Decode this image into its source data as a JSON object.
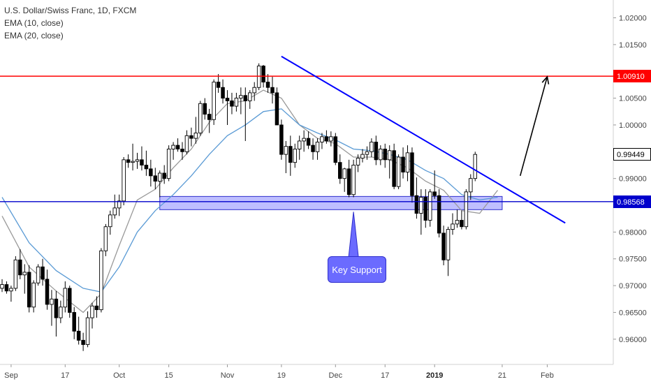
{
  "legend": {
    "title": "U.S. Dollar/Swiss Franc, 1D, FXCM",
    "ema10": "EMA (10, close)",
    "ema20": "EMA (20, close)"
  },
  "annotations": {
    "callout": "Key Support"
  },
  "price_tags": {
    "resistance": "1.00910",
    "last": "0.99449",
    "support": "0.98568"
  },
  "colors": {
    "resistance": "#ff0000",
    "support": "#0000cc",
    "trendline": "#0000ff",
    "zone": "#8a8aff",
    "ema10": "#999999",
    "ema20": "#5b9bd5",
    "candle_up": "#ffffff",
    "candle_down": "#000000",
    "last_tag_bg": "#ffffff"
  },
  "chart_data": {
    "type": "candlestick",
    "title": "U.S. Dollar/Swiss Franc, 1D, FXCM",
    "y_ticks": [
      "1.02000",
      "1.01500",
      "1.00910",
      "1.00500",
      "1.00000",
      "0.99449",
      "0.99000",
      "0.98568",
      "0.98000",
      "0.97500",
      "0.97000",
      "0.96500",
      "0.96000"
    ],
    "y_tick_values": [
      1.02,
      1.015,
      1.0091,
      1.005,
      1.0,
      0.99449,
      0.99,
      0.98568,
      0.98,
      0.975,
      0.97,
      0.965,
      0.96
    ],
    "ylim": [
      0.9575,
      1.0215
    ],
    "x_ticks": [
      {
        "label": "Sep",
        "index": 2
      },
      {
        "label": "17",
        "index": 14
      },
      {
        "label": "Oct",
        "index": 26
      },
      {
        "label": "15",
        "index": 37
      },
      {
        "label": "Nov",
        "index": 50
      },
      {
        "label": "19",
        "index": 62
      },
      {
        "label": "Dec",
        "index": 74
      },
      {
        "label": "17",
        "index": 85
      },
      {
        "label": "2019",
        "index": 96
      },
      {
        "label": "21",
        "index": 111
      },
      {
        "label": "Feb",
        "index": 121
      }
    ],
    "candles": [
      [
        0.9695,
        0.9712,
        0.9688,
        0.9702
      ],
      [
        0.9702,
        0.9708,
        0.9685,
        0.969
      ],
      [
        0.969,
        0.97,
        0.967,
        0.9695
      ],
      [
        0.9695,
        0.9755,
        0.969,
        0.9748
      ],
      [
        0.9748,
        0.9768,
        0.9712,
        0.972
      ],
      [
        0.972,
        0.974,
        0.9685,
        0.9725
      ],
      [
        0.9725,
        0.9738,
        0.965,
        0.966
      ],
      [
        0.966,
        0.971,
        0.965,
        0.9705
      ],
      [
        0.9705,
        0.974,
        0.97,
        0.9735
      ],
      [
        0.9735,
        0.975,
        0.97,
        0.9712
      ],
      [
        0.9712,
        0.973,
        0.9655,
        0.9665
      ],
      [
        0.9665,
        0.9692,
        0.9625,
        0.9675
      ],
      [
        0.9675,
        0.969,
        0.9605,
        0.964
      ],
      [
        0.964,
        0.9672,
        0.963,
        0.966
      ],
      [
        0.966,
        0.9708,
        0.965,
        0.9695
      ],
      [
        0.9695,
        0.97,
        0.964,
        0.965
      ],
      [
        0.965,
        0.966,
        0.96,
        0.9615
      ],
      [
        0.9615,
        0.9642,
        0.959,
        0.9598
      ],
      [
        0.9598,
        0.9612,
        0.9578,
        0.959
      ],
      [
        0.959,
        0.9652,
        0.9585,
        0.964
      ],
      [
        0.964,
        0.9668,
        0.962,
        0.9662
      ],
      [
        0.9662,
        0.968,
        0.964,
        0.9655
      ],
      [
        0.9655,
        0.977,
        0.965,
        0.9765
      ],
      [
        0.9765,
        0.9815,
        0.9755,
        0.981
      ],
      [
        0.981,
        0.984,
        0.9795,
        0.9832
      ],
      [
        0.9832,
        0.987,
        0.9825,
        0.9845
      ],
      [
        0.9845,
        0.987,
        0.983,
        0.9858
      ],
      [
        0.9858,
        0.994,
        0.985,
        0.9935
      ],
      [
        0.9935,
        0.9945,
        0.992,
        0.993
      ],
      [
        0.993,
        0.9965,
        0.9915,
        0.9932
      ],
      [
        0.9932,
        0.9948,
        0.9918,
        0.9935
      ],
      [
        0.9935,
        0.996,
        0.9915,
        0.9925
      ],
      [
        0.9925,
        0.9952,
        0.9905,
        0.9918
      ],
      [
        0.9918,
        0.9935,
        0.9885,
        0.9905
      ],
      [
        0.9905,
        0.992,
        0.988,
        0.9895
      ],
      [
        0.9895,
        0.9915,
        0.9865,
        0.991
      ],
      [
        0.991,
        0.9925,
        0.989,
        0.99
      ],
      [
        0.99,
        0.9962,
        0.9895,
        0.9955
      ],
      [
        0.9955,
        0.9968,
        0.9935,
        0.9962
      ],
      [
        0.9962,
        0.9975,
        0.995,
        0.9955
      ],
      [
        0.9955,
        0.9968,
        0.9935,
        0.995
      ],
      [
        0.995,
        0.999,
        0.9945,
        0.998
      ],
      [
        0.998,
        0.9995,
        0.996,
        0.9975
      ],
      [
        0.9975,
        1.0015,
        0.9965,
        0.9985
      ],
      [
        0.9985,
        1.0045,
        0.998,
        1.004
      ],
      [
        1.004,
        1.005,
        1.001,
        1.002
      ],
      [
        1.002,
        1.003,
        0.9985,
        1.001
      ],
      [
        1.001,
        1.0085,
        1.0,
        1.008
      ],
      [
        1.008,
        1.0095,
        1.006,
        1.007
      ],
      [
        1.007,
        1.0085,
        1.004,
        1.005
      ],
      [
        1.005,
        1.0065,
        1.0,
        1.0045
      ],
      [
        1.0045,
        1.006,
        1.002,
        1.0035
      ],
      [
        1.0035,
        1.006,
        1.0025,
        1.005
      ],
      [
        1.005,
        1.007,
        1.002,
        1.0055
      ],
      [
        1.0055,
        1.007,
        0.997,
        1.0045
      ],
      [
        1.0045,
        1.0065,
        1.003,
        1.006
      ],
      [
        1.006,
        1.008,
        1.0045,
        1.007
      ],
      [
        1.007,
        1.0115,
        1.0065,
        1.011
      ],
      [
        1.011,
        1.0112,
        1.007,
        1.008
      ],
      [
        1.008,
        1.0095,
        1.006,
        1.007
      ],
      [
        1.007,
        1.009,
        1.004,
        1.006
      ],
      [
        1.006,
        1.007,
        1.0,
        1.0
      ],
      [
        1.0,
        1.001,
        0.9935,
        0.9945
      ],
      [
        0.9945,
        0.997,
        0.991,
        0.996
      ],
      [
        0.996,
        0.998,
        0.9905,
        0.993
      ],
      [
        0.993,
        0.9965,
        0.992,
        0.9955
      ],
      [
        0.9955,
        0.998,
        0.9935,
        0.997
      ],
      [
        0.997,
        0.999,
        0.995,
        0.9975
      ],
      [
        0.9975,
        0.9988,
        0.9955,
        0.9962
      ],
      [
        0.9962,
        0.9975,
        0.9935,
        0.995
      ],
      [
        0.995,
        0.9975,
        0.9935,
        0.9968
      ],
      [
        0.9968,
        0.9985,
        0.9955,
        0.9978
      ],
      [
        0.9978,
        0.999,
        0.9965,
        0.997
      ],
      [
        0.997,
        0.9988,
        0.996,
        0.9978
      ],
      [
        0.9978,
        0.9985,
        0.9925,
        0.993
      ],
      [
        0.993,
        0.9945,
        0.989,
        0.99
      ],
      [
        0.99,
        0.992,
        0.9875,
        0.9918
      ],
      [
        0.9918,
        0.9935,
        0.9865,
        0.987
      ],
      [
        0.987,
        0.9935,
        0.9865,
        0.9925
      ],
      [
        0.9925,
        0.9945,
        0.9912,
        0.9938
      ],
      [
        0.9938,
        0.9955,
        0.993,
        0.9945
      ],
      [
        0.9945,
        0.996,
        0.9935,
        0.995
      ],
      [
        0.995,
        0.9975,
        0.994,
        0.9968
      ],
      [
        0.9968,
        0.998,
        0.9925,
        0.9935
      ],
      [
        0.9935,
        0.9962,
        0.9925,
        0.9955
      ],
      [
        0.9955,
        0.9965,
        0.992,
        0.9935
      ],
      [
        0.9935,
        0.9962,
        0.99,
        0.9952
      ],
      [
        0.9952,
        0.9965,
        0.988,
        0.9885
      ],
      [
        0.9885,
        0.9945,
        0.988,
        0.994
      ],
      [
        0.994,
        0.9958,
        0.99,
        0.9912
      ],
      [
        0.9912,
        0.9962,
        0.9895,
        0.9948
      ],
      [
        0.9948,
        0.9958,
        0.9855,
        0.9868
      ],
      [
        0.9868,
        0.9902,
        0.9825,
        0.9835
      ],
      [
        0.9835,
        0.988,
        0.9795,
        0.9865
      ],
      [
        0.9865,
        0.988,
        0.9808,
        0.9822
      ],
      [
        0.9822,
        0.988,
        0.981,
        0.9875
      ],
      [
        0.9875,
        0.9915,
        0.9862,
        0.9868
      ],
      [
        0.9868,
        0.988,
        0.979,
        0.9798
      ],
      [
        0.9798,
        0.9812,
        0.9738,
        0.9748
      ],
      [
        0.9748,
        0.981,
        0.9718,
        0.9805
      ],
      [
        0.9805,
        0.9835,
        0.9795,
        0.9815
      ],
      [
        0.9815,
        0.9842,
        0.9808,
        0.9822
      ],
      [
        0.9822,
        0.984,
        0.9805,
        0.981
      ],
      [
        0.981,
        0.988,
        0.9805,
        0.9875
      ],
      [
        0.9875,
        0.9908,
        0.986,
        0.99
      ],
      [
        0.99,
        0.995,
        0.9895,
        0.9945
      ]
    ],
    "ema_lines": [
      {
        "name": "EMA (10, close)",
        "points": [
          [
            0,
            0.983
          ],
          [
            6,
            0.9735
          ],
          [
            12,
            0.969
          ],
          [
            18,
            0.965
          ],
          [
            22,
            0.9685
          ],
          [
            26,
            0.9775
          ],
          [
            30,
            0.986
          ],
          [
            34,
            0.988
          ],
          [
            38,
            0.992
          ],
          [
            42,
            0.9955
          ],
          [
            46,
            1.0005
          ],
          [
            50,
            1.004
          ],
          [
            54,
            1.0045
          ],
          [
            58,
            1.0065
          ],
          [
            62,
            1.005
          ],
          [
            66,
            1.0
          ],
          [
            70,
            0.9975
          ],
          [
            74,
            0.9965
          ],
          [
            78,
            0.994
          ],
          [
            82,
            0.994
          ],
          [
            86,
            0.9935
          ],
          [
            90,
            0.992
          ],
          [
            94,
            0.9895
          ],
          [
            98,
            0.9878
          ],
          [
            102,
            0.984
          ],
          [
            106,
            0.9835
          ],
          [
            110,
            0.9878
          ]
        ]
      },
      {
        "name": "EMA (20, close)",
        "points": [
          [
            0,
            0.9865
          ],
          [
            6,
            0.978
          ],
          [
            12,
            0.9728
          ],
          [
            18,
            0.9695
          ],
          [
            22,
            0.9688
          ],
          [
            26,
            0.9735
          ],
          [
            30,
            0.98
          ],
          [
            34,
            0.984
          ],
          [
            38,
            0.987
          ],
          [
            42,
            0.9905
          ],
          [
            46,
            0.9945
          ],
          [
            50,
            0.998
          ],
          [
            54,
            1.0
          ],
          [
            58,
            1.0025
          ],
          [
            62,
            1.003
          ],
          [
            66,
            1.0
          ],
          [
            70,
            0.9985
          ],
          [
            74,
            0.9972
          ],
          [
            78,
            0.9955
          ],
          [
            82,
            0.9952
          ],
          [
            86,
            0.9945
          ],
          [
            90,
            0.9935
          ],
          [
            94,
            0.9915
          ],
          [
            98,
            0.99
          ],
          [
            102,
            0.987
          ],
          [
            106,
            0.986
          ],
          [
            110,
            0.9865
          ]
        ]
      }
    ],
    "drawings": {
      "resistance_level": 1.0091,
      "support_level": 0.98568,
      "support_zone": {
        "from_index": 35,
        "to_index": 111,
        "top": 0.98665,
        "bottom": 0.98418
      },
      "trendline": {
        "from": [
          62,
          1.0128
        ],
        "to": [
          125,
          0.9817
        ]
      },
      "arrow": {
        "from": [
          115,
          0.9905
        ],
        "to": [
          121,
          1.009
        ]
      },
      "callout_pointer_index": 78
    },
    "grid": false,
    "legend_position": "top-left"
  }
}
